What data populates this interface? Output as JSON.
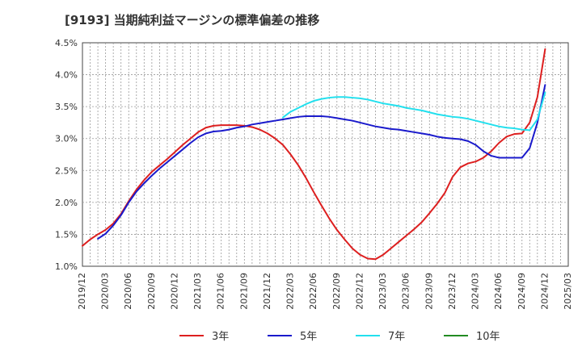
{
  "chart_data": {
    "type": "line",
    "title": "[9193]  当期純利益マージンの標準偏差の推移",
    "xlabel": "",
    "ylabel": "",
    "x_ticks": [
      "2019/12",
      "2020/03",
      "2020/06",
      "2020/09",
      "2020/12",
      "2021/03",
      "2021/06",
      "2021/09",
      "2021/12",
      "2022/03",
      "2022/06",
      "2022/09",
      "2022/12",
      "2023/03",
      "2023/06",
      "2023/09",
      "2023/12",
      "2024/03",
      "2024/06",
      "2024/09",
      "2024/12",
      "2025/03"
    ],
    "y_ticks": [
      "1.0%",
      "1.5%",
      "2.0%",
      "2.5%",
      "3.0%",
      "3.5%",
      "4.0%",
      "4.5%"
    ],
    "ylim": [
      1.0,
      4.5
    ],
    "x_range": [
      "2019/12",
      "2025/03"
    ],
    "grid": true,
    "legend_position": "bottom",
    "series": [
      {
        "name": "3年",
        "color": "#dd1f1f",
        "points": [
          [
            "2019/12",
            1.32
          ],
          [
            "2020/01",
            1.42
          ],
          [
            "2020/02",
            1.5
          ],
          [
            "2020/03",
            1.57
          ],
          [
            "2020/04",
            1.67
          ],
          [
            "2020/05",
            1.82
          ],
          [
            "2020/06",
            2.02
          ],
          [
            "2020/07",
            2.2
          ],
          [
            "2020/08",
            2.35
          ],
          [
            "2020/09",
            2.48
          ],
          [
            "2020/10",
            2.58
          ],
          [
            "2020/11",
            2.68
          ],
          [
            "2020/12",
            2.79
          ],
          [
            "2021/01",
            2.9
          ],
          [
            "2021/02",
            3.0
          ],
          [
            "2021/03",
            3.1
          ],
          [
            "2021/04",
            3.17
          ],
          [
            "2021/05",
            3.2
          ],
          [
            "2021/06",
            3.21
          ],
          [
            "2021/07",
            3.21
          ],
          [
            "2021/08",
            3.21
          ],
          [
            "2021/09",
            3.2
          ],
          [
            "2021/10",
            3.18
          ],
          [
            "2021/11",
            3.14
          ],
          [
            "2021/12",
            3.08
          ],
          [
            "2022/01",
            3.0
          ],
          [
            "2022/02",
            2.9
          ],
          [
            "2022/03",
            2.75
          ],
          [
            "2022/04",
            2.58
          ],
          [
            "2022/05",
            2.38
          ],
          [
            "2022/06",
            2.16
          ],
          [
            "2022/07",
            1.95
          ],
          [
            "2022/08",
            1.75
          ],
          [
            "2022/09",
            1.57
          ],
          [
            "2022/10",
            1.42
          ],
          [
            "2022/11",
            1.28
          ],
          [
            "2022/12",
            1.18
          ],
          [
            "2023/01",
            1.12
          ],
          [
            "2023/02",
            1.11
          ],
          [
            "2023/03",
            1.18
          ],
          [
            "2023/04",
            1.28
          ],
          [
            "2023/05",
            1.38
          ],
          [
            "2023/06",
            1.48
          ],
          [
            "2023/07",
            1.58
          ],
          [
            "2023/08",
            1.69
          ],
          [
            "2023/09",
            1.83
          ],
          [
            "2023/10",
            1.98
          ],
          [
            "2023/11",
            2.15
          ],
          [
            "2023/12",
            2.4
          ],
          [
            "2024/01",
            2.55
          ],
          [
            "2024/02",
            2.61
          ],
          [
            "2024/03",
            2.64
          ],
          [
            "2024/04",
            2.7
          ],
          [
            "2024/05",
            2.8
          ],
          [
            "2024/06",
            2.93
          ],
          [
            "2024/07",
            3.03
          ],
          [
            "2024/08",
            3.07
          ],
          [
            "2024/09",
            3.08
          ],
          [
            "2024/10",
            3.25
          ],
          [
            "2024/11",
            3.65
          ],
          [
            "2024/12",
            4.4
          ]
        ]
      },
      {
        "name": "5年",
        "color": "#1a1acc",
        "points": [
          [
            "2020/02",
            1.43
          ],
          [
            "2020/03",
            1.51
          ],
          [
            "2020/04",
            1.64
          ],
          [
            "2020/05",
            1.8
          ],
          [
            "2020/06",
            2.0
          ],
          [
            "2020/07",
            2.17
          ],
          [
            "2020/08",
            2.3
          ],
          [
            "2020/09",
            2.42
          ],
          [
            "2020/10",
            2.53
          ],
          [
            "2020/11",
            2.63
          ],
          [
            "2020/12",
            2.73
          ],
          [
            "2021/01",
            2.83
          ],
          [
            "2021/02",
            2.93
          ],
          [
            "2021/03",
            3.02
          ],
          [
            "2021/04",
            3.08
          ],
          [
            "2021/05",
            3.11
          ],
          [
            "2021/06",
            3.12
          ],
          [
            "2021/07",
            3.14
          ],
          [
            "2021/08",
            3.17
          ],
          [
            "2021/09",
            3.19
          ],
          [
            "2021/10",
            3.22
          ],
          [
            "2021/11",
            3.24
          ],
          [
            "2021/12",
            3.26
          ],
          [
            "2022/01",
            3.28
          ],
          [
            "2022/02",
            3.3
          ],
          [
            "2022/03",
            3.32
          ],
          [
            "2022/04",
            3.34
          ],
          [
            "2022/05",
            3.35
          ],
          [
            "2022/06",
            3.35
          ],
          [
            "2022/07",
            3.35
          ],
          [
            "2022/08",
            3.34
          ],
          [
            "2022/09",
            3.32
          ],
          [
            "2022/10",
            3.3
          ],
          [
            "2022/11",
            3.28
          ],
          [
            "2022/12",
            3.25
          ],
          [
            "2023/01",
            3.22
          ],
          [
            "2023/02",
            3.19
          ],
          [
            "2023/03",
            3.17
          ],
          [
            "2023/04",
            3.15
          ],
          [
            "2023/05",
            3.14
          ],
          [
            "2023/06",
            3.12
          ],
          [
            "2023/07",
            3.1
          ],
          [
            "2023/08",
            3.08
          ],
          [
            "2023/09",
            3.06
          ],
          [
            "2023/10",
            3.03
          ],
          [
            "2023/11",
            3.01
          ],
          [
            "2023/12",
            3.0
          ],
          [
            "2024/01",
            2.99
          ],
          [
            "2024/02",
            2.96
          ],
          [
            "2024/03",
            2.9
          ],
          [
            "2024/04",
            2.8
          ],
          [
            "2024/05",
            2.73
          ],
          [
            "2024/06",
            2.7
          ],
          [
            "2024/07",
            2.7
          ],
          [
            "2024/08",
            2.7
          ],
          [
            "2024/09",
            2.7
          ],
          [
            "2024/10",
            2.85
          ],
          [
            "2024/11",
            3.25
          ],
          [
            "2024/12",
            3.84
          ]
        ]
      },
      {
        "name": "7年",
        "color": "#22e0ee",
        "points": [
          [
            "2022/02",
            3.33
          ],
          [
            "2022/03",
            3.42
          ],
          [
            "2022/04",
            3.48
          ],
          [
            "2022/05",
            3.54
          ],
          [
            "2022/06",
            3.59
          ],
          [
            "2022/07",
            3.62
          ],
          [
            "2022/08",
            3.64
          ],
          [
            "2022/09",
            3.65
          ],
          [
            "2022/10",
            3.65
          ],
          [
            "2022/11",
            3.64
          ],
          [
            "2022/12",
            3.63
          ],
          [
            "2023/01",
            3.61
          ],
          [
            "2023/02",
            3.58
          ],
          [
            "2023/03",
            3.55
          ],
          [
            "2023/04",
            3.53
          ],
          [
            "2023/05",
            3.51
          ],
          [
            "2023/06",
            3.48
          ],
          [
            "2023/07",
            3.46
          ],
          [
            "2023/08",
            3.44
          ],
          [
            "2023/09",
            3.41
          ],
          [
            "2023/10",
            3.38
          ],
          [
            "2023/11",
            3.36
          ],
          [
            "2023/12",
            3.34
          ],
          [
            "2024/01",
            3.33
          ],
          [
            "2024/02",
            3.31
          ],
          [
            "2024/03",
            3.28
          ],
          [
            "2024/04",
            3.25
          ],
          [
            "2024/05",
            3.22
          ],
          [
            "2024/06",
            3.19
          ],
          [
            "2024/07",
            3.17
          ],
          [
            "2024/08",
            3.16
          ],
          [
            "2024/09",
            3.14
          ],
          [
            "2024/10",
            3.13
          ],
          [
            "2024/11",
            3.3
          ],
          [
            "2024/12",
            3.72
          ]
        ]
      },
      {
        "name": "10年",
        "color": "#228b22",
        "points": []
      }
    ]
  }
}
